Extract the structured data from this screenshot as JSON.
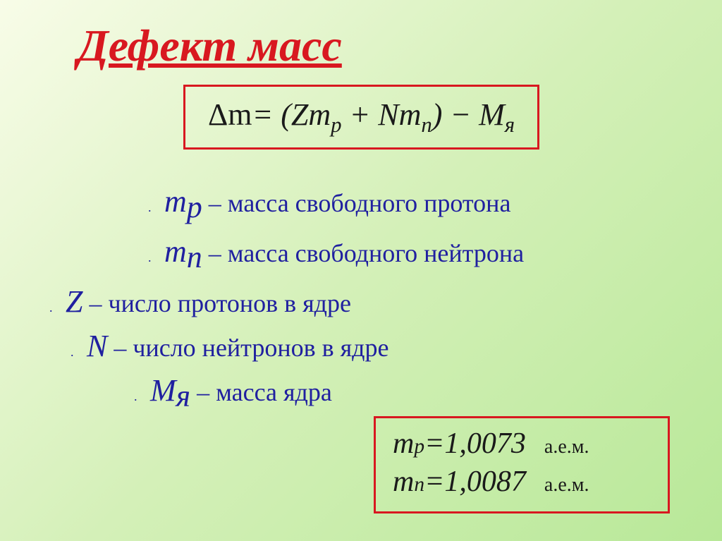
{
  "title": "Дефект масс",
  "formula": {
    "lhs": "Δm",
    "rhs_open": "= (Z",
    "mp": "m",
    "mp_sub": "p",
    "plus": " + N",
    "mn": "m",
    "mn_sub": "n",
    "close": ") − ",
    "MYa": "M",
    "MYa_sub": "я"
  },
  "definitions": [
    {
      "symbol": "m",
      "sub": "p",
      "text": " – масса свободного протона"
    },
    {
      "symbol": "m",
      "sub": "n",
      "text": " – масса свободного нейтрона"
    },
    {
      "symbol": "Z",
      "sub": "",
      "text": " – число протонов в ядре"
    },
    {
      "symbol": "N",
      "sub": "",
      "text": " – число нейтронов в ядре"
    },
    {
      "symbol": "М",
      "sub": "я",
      "text": " – масса ядра"
    }
  ],
  "constants": {
    "mp": {
      "sym": "m",
      "sub": "p",
      "eq": " = ",
      "val": "1,0073",
      "unit": "а.е.м."
    },
    "mn": {
      "sym": "m",
      "sub": "n",
      "eq": " = ",
      "val": "1,0087",
      "unit": "а.е.м."
    }
  },
  "colors": {
    "title": "#d81820",
    "border": "#d81820",
    "definition_text": "#2020a0",
    "formula_text": "#1a1a1a"
  },
  "fonts": {
    "title_size": 64,
    "formula_size": 44,
    "definition_size": 36,
    "constant_size": 42,
    "unit_size": 28
  }
}
